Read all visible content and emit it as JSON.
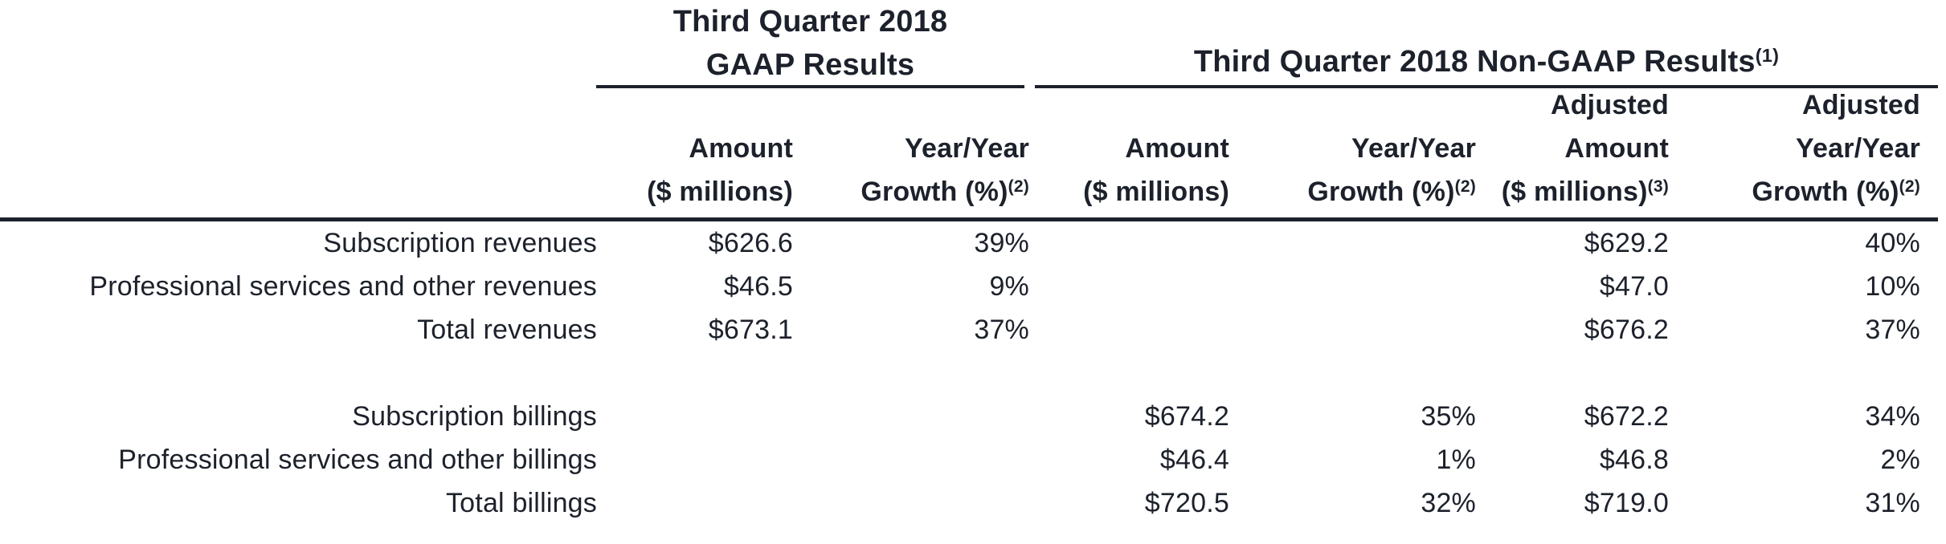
{
  "document": {
    "background": "#ffffff",
    "text_color": "#1c212b",
    "rule_color": "#1c212b"
  },
  "sections": {
    "gaap": {
      "title_line1": "Third Quarter 2018",
      "title_line2": "GAAP Results"
    },
    "non_gaap": {
      "title": "Third Quarter 2018 Non-GAAP Results",
      "title_footnote": "(1)"
    }
  },
  "column_headers": {
    "gaap_amount": {
      "line1": "Amount",
      "line2": "($ millions)"
    },
    "gaap_growth": {
      "line1": "Year/Year",
      "line2": "Growth (%)",
      "footnote": "(2)"
    },
    "non_gaap_amount": {
      "line1": "Amount",
      "line2": "($ millions)"
    },
    "non_gaap_growth": {
      "line1": "Year/Year",
      "line2": "Growth (%)",
      "footnote": "(2)"
    },
    "adjusted_amount": {
      "line0": "Adjusted",
      "line1": "Amount",
      "line2": "($ millions)",
      "footnote": "(3)"
    },
    "adjusted_growth": {
      "line0": "Adjusted",
      "line1": "Year/Year",
      "line2": "Growth (%)",
      "footnote": "(2)"
    }
  },
  "rows": [
    {
      "label": "Subscription revenues",
      "gaap_amount": "$626.6",
      "gaap_growth": "39%",
      "non_gaap_amount": "",
      "non_gaap_growth": "",
      "adjusted_amount": "$629.2",
      "adjusted_growth": "40%"
    },
    {
      "label": "Professional services and other revenues",
      "gaap_amount": "$46.5",
      "gaap_growth": "9%",
      "non_gaap_amount": "",
      "non_gaap_growth": "",
      "adjusted_amount": "$47.0",
      "adjusted_growth": "10%"
    },
    {
      "label": "Total revenues",
      "gaap_amount": "$673.1",
      "gaap_growth": "37%",
      "non_gaap_amount": "",
      "non_gaap_growth": "",
      "adjusted_amount": "$676.2",
      "adjusted_growth": "37%"
    },
    {
      "label": "Subscription billings",
      "gaap_amount": "",
      "gaap_growth": "",
      "non_gaap_amount": "$674.2",
      "non_gaap_growth": "35%",
      "adjusted_amount": "$672.2",
      "adjusted_growth": "34%"
    },
    {
      "label": "Professional services and other billings",
      "gaap_amount": "",
      "gaap_growth": "",
      "non_gaap_amount": "$46.4",
      "non_gaap_growth": "1%",
      "adjusted_amount": "$46.8",
      "adjusted_growth": "2%"
    },
    {
      "label": "Total billings",
      "gaap_amount": "",
      "gaap_growth": "",
      "non_gaap_amount": "$720.5",
      "non_gaap_growth": "32%",
      "adjusted_amount": "$719.0",
      "adjusted_growth": "31%"
    }
  ]
}
